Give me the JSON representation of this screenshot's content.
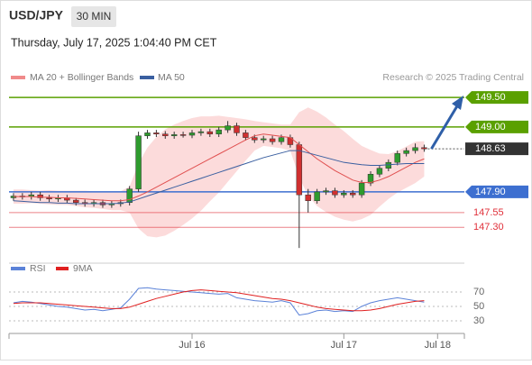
{
  "header": {
    "symbol": "USD/JPY",
    "interval": "30 MIN",
    "datetime": "Thursday, July 17, 2025 1:04:40 PM CET",
    "legend": [
      "MA 20 + Bollinger Bands",
      "MA 50"
    ],
    "credit": "Research © 2025 Trading Central"
  },
  "chart_data": [
    {
      "type": "candlestick",
      "xlim": [
        -0.5,
        50.5
      ],
      "ylim": [
        146.8,
        149.7
      ],
      "xticks": [
        {
          "value": 20,
          "label": "Jul 16"
        },
        {
          "value": 37,
          "label": "Jul 17"
        },
        {
          "value": 47.5,
          "label": "Jul 18"
        }
      ],
      "x": [
        0,
        1,
        2,
        3,
        4,
        5,
        6,
        7,
        8,
        9,
        10,
        11,
        12,
        13,
        14,
        15,
        16,
        17,
        18,
        19,
        20,
        21,
        22,
        23,
        24,
        25,
        26,
        27,
        28,
        29,
        30,
        31,
        32,
        33,
        34,
        35,
        36,
        37,
        38,
        39,
        40,
        41,
        42,
        43,
        44,
        45,
        46
      ],
      "open": [
        147.8,
        147.83,
        147.82,
        147.85,
        147.8,
        147.78,
        147.8,
        147.76,
        147.72,
        147.7,
        147.72,
        147.68,
        147.7,
        147.72,
        147.95,
        148.85,
        148.9,
        148.88,
        148.85,
        148.87,
        148.86,
        148.9,
        148.92,
        148.88,
        148.95,
        149.02,
        148.9,
        148.82,
        148.78,
        148.8,
        148.75,
        148.82,
        148.7,
        147.85,
        147.75,
        147.9,
        147.92,
        147.85,
        147.88,
        147.85,
        148.05,
        148.2,
        148.3,
        148.4,
        148.55,
        148.6,
        148.65
      ],
      "high": [
        147.88,
        147.88,
        147.9,
        147.9,
        147.85,
        147.85,
        147.85,
        147.8,
        147.77,
        147.77,
        147.77,
        147.75,
        147.77,
        148.0,
        148.92,
        148.95,
        148.95,
        148.93,
        148.92,
        148.92,
        148.95,
        148.97,
        148.97,
        149.0,
        149.1,
        149.07,
        148.95,
        148.87,
        148.85,
        148.85,
        148.87,
        148.87,
        148.75,
        147.95,
        147.95,
        147.97,
        147.97,
        147.93,
        147.93,
        148.1,
        148.25,
        148.35,
        148.45,
        148.6,
        148.65,
        148.72,
        148.7
      ],
      "low": [
        147.75,
        147.77,
        147.77,
        147.75,
        147.73,
        147.73,
        147.71,
        147.67,
        147.65,
        147.65,
        147.63,
        147.63,
        147.65,
        147.67,
        147.9,
        148.8,
        148.83,
        148.8,
        148.8,
        148.82,
        148.81,
        148.85,
        148.83,
        148.83,
        148.9,
        148.85,
        148.77,
        148.73,
        148.73,
        148.7,
        148.7,
        148.65,
        146.95,
        147.55,
        147.7,
        147.85,
        147.8,
        147.8,
        147.8,
        147.8,
        148.0,
        148.15,
        148.25,
        148.35,
        148.5,
        148.55,
        148.58
      ],
      "close": [
        147.83,
        147.82,
        147.85,
        147.8,
        147.78,
        147.8,
        147.76,
        147.72,
        147.7,
        147.72,
        147.68,
        147.7,
        147.72,
        147.95,
        148.85,
        148.9,
        148.88,
        148.85,
        148.87,
        148.86,
        148.9,
        148.92,
        148.88,
        148.95,
        149.02,
        148.9,
        148.82,
        148.78,
        148.8,
        148.75,
        148.82,
        148.7,
        147.85,
        147.75,
        147.9,
        147.92,
        147.85,
        147.88,
        147.85,
        148.05,
        148.2,
        148.3,
        148.4,
        148.55,
        148.6,
        148.65,
        148.63
      ],
      "up_color": "#2e9b2e",
      "down_color": "#d03030",
      "bands": {
        "color": "#fbd2d2",
        "upper": [
          147.94,
          147.94,
          147.93,
          147.92,
          147.93,
          147.92,
          147.92,
          147.92,
          147.92,
          147.91,
          147.91,
          147.91,
          147.91,
          147.99,
          148.38,
          148.65,
          148.83,
          148.96,
          149.04,
          149.1,
          149.15,
          149.18,
          149.18,
          149.19,
          149.17,
          149.15,
          149.13,
          149.1,
          149.08,
          149.06,
          149.04,
          149.04,
          149.25,
          149.33,
          149.26,
          149.16,
          149.04,
          148.93,
          148.8,
          148.68,
          148.61,
          148.55,
          148.54,
          148.59,
          148.67,
          148.75,
          148.76
        ],
        "lower": [
          147.7,
          147.7,
          147.71,
          147.7,
          147.69,
          147.68,
          147.68,
          147.66,
          147.64,
          147.63,
          147.61,
          147.59,
          147.59,
          147.55,
          147.28,
          147.15,
          147.13,
          147.16,
          147.24,
          147.34,
          147.45,
          147.58,
          147.74,
          147.89,
          148.07,
          148.25,
          148.43,
          148.6,
          148.68,
          148.66,
          148.64,
          148.6,
          148.15,
          147.83,
          147.66,
          147.56,
          147.48,
          147.43,
          147.4,
          147.44,
          147.51,
          147.65,
          147.78,
          147.89,
          147.97,
          148.05,
          148.16
        ]
      },
      "series": [
        {
          "name": "MA 20",
          "color": "#e05050",
          "values": [
            147.82,
            147.82,
            147.82,
            147.81,
            147.81,
            147.8,
            147.8,
            147.79,
            147.78,
            147.77,
            147.76,
            147.75,
            147.75,
            147.77,
            147.83,
            147.9,
            147.98,
            148.06,
            148.14,
            148.22,
            148.3,
            148.38,
            148.46,
            148.54,
            148.62,
            148.7,
            148.78,
            148.85,
            148.88,
            148.86,
            148.84,
            148.82,
            148.7,
            148.58,
            148.46,
            148.36,
            148.26,
            148.18,
            148.1,
            148.06,
            148.06,
            148.1,
            148.16,
            148.24,
            148.32,
            148.4,
            148.46
          ]
        },
        {
          "name": "MA 50",
          "color": "#3a5fa0",
          "values": [
            147.75,
            147.74,
            147.73,
            147.72,
            147.72,
            147.71,
            147.71,
            147.7,
            147.7,
            147.7,
            147.7,
            147.7,
            147.71,
            147.73,
            147.78,
            147.83,
            147.88,
            147.93,
            147.98,
            148.03,
            148.08,
            148.13,
            148.18,
            148.23,
            148.28,
            148.33,
            148.38,
            148.43,
            148.48,
            148.52,
            148.56,
            148.6,
            148.6,
            148.56,
            148.52,
            148.48,
            148.44,
            148.4,
            148.38,
            148.36,
            148.35,
            148.35,
            148.36,
            148.37,
            148.38,
            148.38,
            148.38
          ]
        }
      ],
      "levels": [
        {
          "value": 149.5,
          "label": "149.50",
          "color": "#5aa000",
          "style": "box"
        },
        {
          "value": 149.0,
          "label": "149.00",
          "color": "#5aa000",
          "style": "box"
        },
        {
          "value": 148.63,
          "label": "148.63",
          "color": "#333333",
          "style": "current"
        },
        {
          "value": 147.9,
          "label": "147.90",
          "color": "#3d6fd0",
          "style": "box"
        },
        {
          "value": 147.55,
          "label": "147.55",
          "color": "#e0303a",
          "style": "text"
        },
        {
          "value": 147.3,
          "label": "147.30",
          "color": "#e0303a",
          "style": "text"
        }
      ]
    },
    {
      "type": "line",
      "xlim": [
        -0.5,
        50.5
      ],
      "ylim": [
        12.5,
        87.5
      ],
      "yticks": [
        70,
        50,
        30
      ],
      "x": [
        0,
        1,
        2,
        3,
        4,
        5,
        6,
        7,
        8,
        9,
        10,
        11,
        12,
        13,
        14,
        15,
        16,
        17,
        18,
        19,
        20,
        21,
        22,
        23,
        24,
        25,
        26,
        27,
        28,
        29,
        30,
        31,
        32,
        33,
        34,
        35,
        36,
        37,
        38,
        39,
        40,
        41,
        42,
        43,
        44,
        45,
        46
      ],
      "series": [
        {
          "name": "RSI",
          "color": "#5b82d8",
          "values": [
            55,
            57,
            56,
            54,
            52,
            50,
            49,
            47,
            45,
            46,
            44,
            46,
            48,
            60,
            75,
            76,
            74,
            73,
            72,
            71,
            70,
            69,
            68,
            67,
            68,
            62,
            60,
            58,
            57,
            56,
            58,
            55,
            38,
            40,
            44,
            45,
            43,
            44,
            43,
            50,
            55,
            58,
            60,
            62,
            60,
            58,
            56
          ]
        },
        {
          "name": "9MA",
          "color": "#e02020",
          "values": [
            54,
            55,
            55,
            55,
            54,
            53,
            52,
            51,
            50,
            49,
            48,
            47,
            47,
            49,
            53,
            57,
            61,
            64,
            67,
            70,
            72,
            73,
            72,
            71,
            70,
            69,
            67,
            65,
            63,
            61,
            60,
            58,
            55,
            52,
            49,
            47,
            46,
            45,
            44,
            44,
            45,
            47,
            50,
            53,
            55,
            57,
            58
          ]
        }
      ]
    }
  ]
}
